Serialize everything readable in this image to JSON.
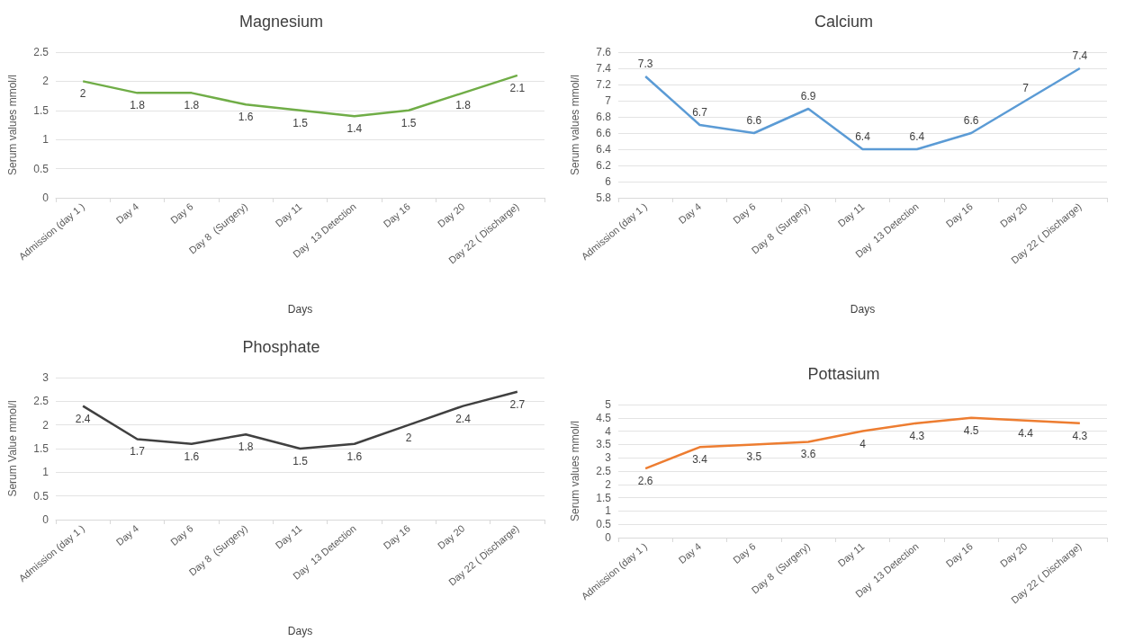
{
  "chart_data": [
    {
      "type": "line",
      "title": "Magnesium",
      "xlabel": "Days",
      "ylabel": "Serum values mmol/l",
      "categories": [
        "Admission (day 1 )",
        "Day 4",
        "Day 6",
        "Day 8  (Surgery)",
        "Day 11",
        "Day  13 Detection",
        "Day 16",
        "Day 20",
        "Day 22 ( Discharge)"
      ],
      "series": [
        {
          "color": "#70ad47",
          "values": [
            2,
            1.8,
            1.8,
            1.6,
            1.5,
            1.4,
            1.5,
            1.8,
            2.1
          ]
        }
      ],
      "ylim": [
        0,
        2.5
      ],
      "yticks": [
        0,
        0.5,
        1,
        1.5,
        2,
        2.5
      ],
      "grid": "y",
      "marker": "none",
      "data_labels": true
    },
    {
      "type": "line",
      "title": "Calcium",
      "xlabel": "Days",
      "ylabel": "Serum values mmol/l",
      "categories": [
        "Admission (day 1 )",
        "Day 4",
        "Day 6",
        "Day 8  (Surgery)",
        "Day 11",
        "Day  13 Detection",
        "Day 16",
        "Day 20",
        "Day 22 ( Discharge)"
      ],
      "series": [
        {
          "color": "#5b9bd5",
          "values": [
            7.3,
            6.7,
            6.6,
            6.9,
            6.4,
            6.4,
            6.6,
            7,
            7.4
          ]
        }
      ],
      "ylim": [
        5.8,
        7.6
      ],
      "yticks": [
        5.8,
        6,
        6.2,
        6.4,
        6.6,
        6.8,
        7,
        7.2,
        7.4,
        7.6
      ],
      "grid": "y",
      "marker": "none",
      "data_labels": true
    },
    {
      "type": "line",
      "title": "Phosphate",
      "xlabel": "Days",
      "ylabel": "Serum Value mmol/l",
      "categories": [
        "Admission (day 1 )",
        "Day 4",
        "Day 6",
        "Day 8  (Surgery)",
        "Day 11",
        "Day  13 Detection",
        "Day 16",
        "Day 20",
        "Day 22 ( Discharge)"
      ],
      "series": [
        {
          "color": "#404040",
          "values": [
            2.4,
            1.7,
            1.6,
            1.8,
            1.5,
            1.6,
            2,
            2.4,
            2.7
          ]
        }
      ],
      "ylim": [
        0,
        3
      ],
      "yticks": [
        0,
        0.5,
        1,
        1.5,
        2,
        2.5,
        3
      ],
      "grid": "y",
      "marker": "none",
      "data_labels": true
    },
    {
      "type": "line",
      "title": "Pottasium",
      "ylabel": "Serum values mmol/l",
      "categories": [
        "Admission (day 1 )",
        "Day 4",
        "Day 6",
        "Day 8  (Surgery)",
        "Day 11",
        "Day  13 Detection",
        "Day 16",
        "Day 20",
        "Day 22 ( Discharge)"
      ],
      "series": [
        {
          "color": "#ed7d31",
          "values": [
            2.6,
            3.4,
            3.5,
            3.6,
            4,
            4.3,
            4.5,
            4.4,
            4.3
          ]
        }
      ],
      "ylim": [
        0,
        5
      ],
      "yticks": [
        0,
        0.5,
        1,
        1.5,
        2,
        2.5,
        3,
        3.5,
        4,
        4.5,
        5
      ],
      "grid": "y",
      "marker": "none",
      "data_labels": true
    }
  ]
}
